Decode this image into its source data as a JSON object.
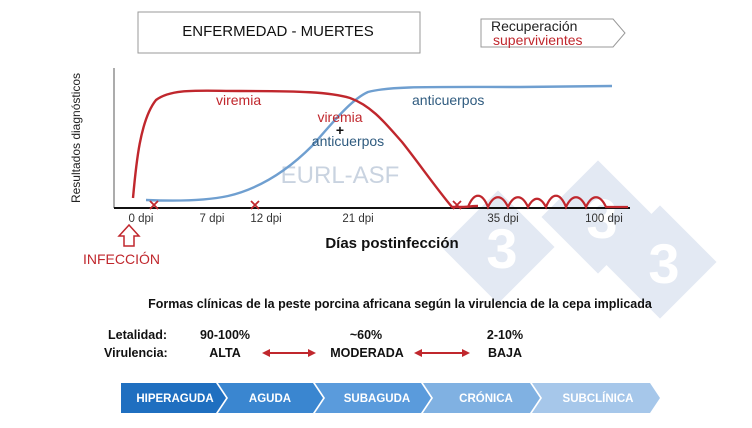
{
  "header": {
    "title": "ENFERMEDAD - MUERTES",
    "recovery_line1": "Recuperación",
    "recovery_line2": "supervivientes"
  },
  "chart": {
    "y_axis_label": "Resultados diagnósticos",
    "x_axis_label": "Días postinfección",
    "ticks": [
      "0 dpi",
      "7 dpi",
      "12 dpi",
      "21 dpi",
      "35 dpi",
      "100 dpi"
    ],
    "curve_labels": {
      "viremia": "viremia",
      "anticuerpos": "anticuerpos",
      "overlap_viremia": "viremia",
      "overlap_plus": "+",
      "overlap_anticuerpos": "anticuerpos"
    },
    "infection_label": "INFECCIÓN",
    "watermark": "EURL-ASF"
  },
  "forms_section": {
    "title": "Formas clínicas de la peste porcina africana según la virulencia de la cepa implicada",
    "letalidad_label": "Letalidad:",
    "virulencia_label": "Virulencia:",
    "letalidad_values": [
      "90-100%",
      "~60%",
      "2-10%"
    ],
    "virulencia_values": [
      "ALTA",
      "MODERADA",
      "BAJA"
    ]
  },
  "forms_bar": [
    "HIPERAGUDA",
    "AGUDA",
    "SUBAGUDA",
    "CRÓNICA",
    "SUBCLÍNICA"
  ],
  "colors": {
    "red": "#c0272d",
    "blue": "#2f5b7f",
    "arrow_blues": [
      "#1f6fc0",
      "#3a86d0",
      "#5a9bdc",
      "#80b1e2",
      "#a6c7ea"
    ],
    "logo": "#e3e9f3"
  }
}
